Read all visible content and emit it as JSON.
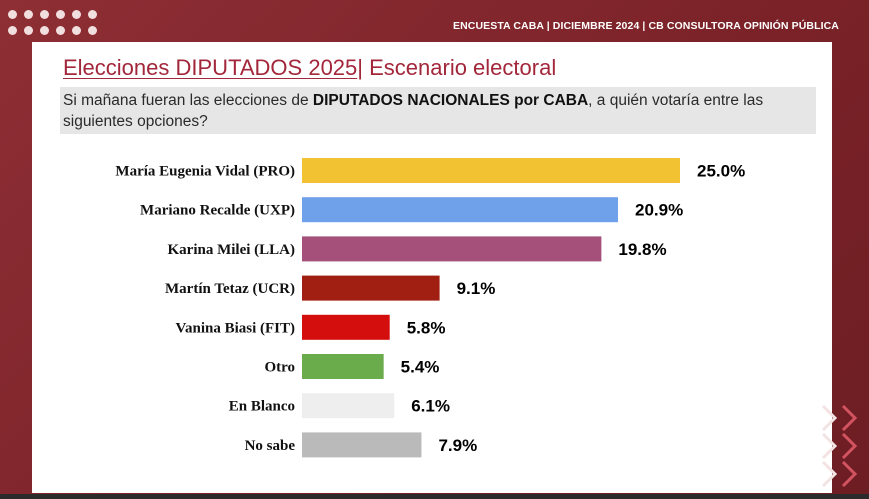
{
  "header": {
    "text": "ENCUESTA CABA | DICIEMBRE 2024 | CB CONSULTORA OPINIÓN PÚBLICA"
  },
  "title": {
    "part1": "Elecciones DIPUTADOS 2025",
    "part2": "| Escenario electoral"
  },
  "question": {
    "pre": "Si mañana fueran las elecciones de ",
    "bold": "DIPUTADOS NACIONALES por CABA",
    "post": ", a quién votaría entre las siguientes opciones?"
  },
  "chart_data": {
    "type": "bar",
    "orientation": "horizontal",
    "categories": [
      "María Eugenia Vidal (PRO)",
      "Mariano Recalde (UXP)",
      "Karina Milei (LLA)",
      "Martín Tetaz (UCR)",
      "Vanina Biasi (FIT)",
      "Otro",
      "En Blanco",
      "No sabe"
    ],
    "values": [
      25.0,
      20.9,
      19.8,
      9.1,
      5.8,
      5.4,
      6.1,
      7.9
    ],
    "value_labels": [
      "25.0%",
      "20.9%",
      "19.8%",
      "9.1%",
      "5.8%",
      "5.4%",
      "6.1%",
      "7.9%"
    ],
    "colors": [
      "#f2c232",
      "#6fa0ea",
      "#a4507b",
      "#a01e12",
      "#d40d0d",
      "#6aac4c",
      "#eeeeee",
      "#bababa"
    ],
    "xlim": [
      0,
      25
    ],
    "grid": false,
    "legend": "none"
  }
}
